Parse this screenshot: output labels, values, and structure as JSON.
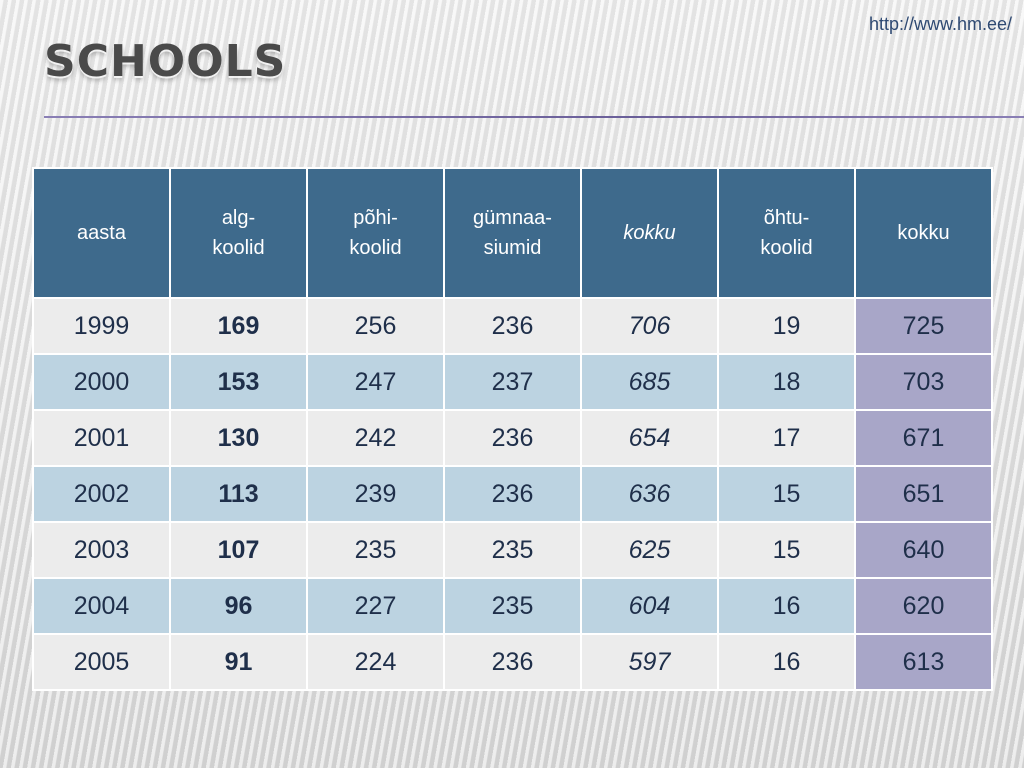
{
  "url": "http://www.hm.ee/",
  "title": "Schools",
  "table": {
    "headers": [
      [
        "aasta"
      ],
      [
        "alg-",
        "koolid"
      ],
      [
        "põhi-",
        "koolid"
      ],
      [
        "gümnaa-",
        "siumid"
      ],
      [
        "kokku"
      ],
      [
        "õhtu-",
        "koolid"
      ],
      [
        "kokku"
      ]
    ],
    "rows": [
      [
        "1999",
        "169",
        "256",
        "236",
        "706",
        "19",
        "725"
      ],
      [
        "2000",
        "153",
        "247",
        "237",
        "685",
        "18",
        "703"
      ],
      [
        "2001",
        "130",
        "242",
        "236",
        "654",
        "17",
        "671"
      ],
      [
        "2002",
        "113",
        "239",
        "236",
        "636",
        "15",
        "651"
      ],
      [
        "2003",
        "107",
        "235",
        "235",
        "625",
        "15",
        "640"
      ],
      [
        "2004",
        "96",
        "227",
        "235",
        "604",
        "16",
        "620"
      ],
      [
        "2005",
        "91",
        "224",
        "236",
        "597",
        "16",
        "613"
      ]
    ]
  },
  "colors": {
    "header_bg": "#3e6a8c",
    "row_light": "#ececec",
    "row_blue": "#bcd3e1",
    "total_col": "#a8a6c8",
    "rule": "#6a5f99"
  }
}
